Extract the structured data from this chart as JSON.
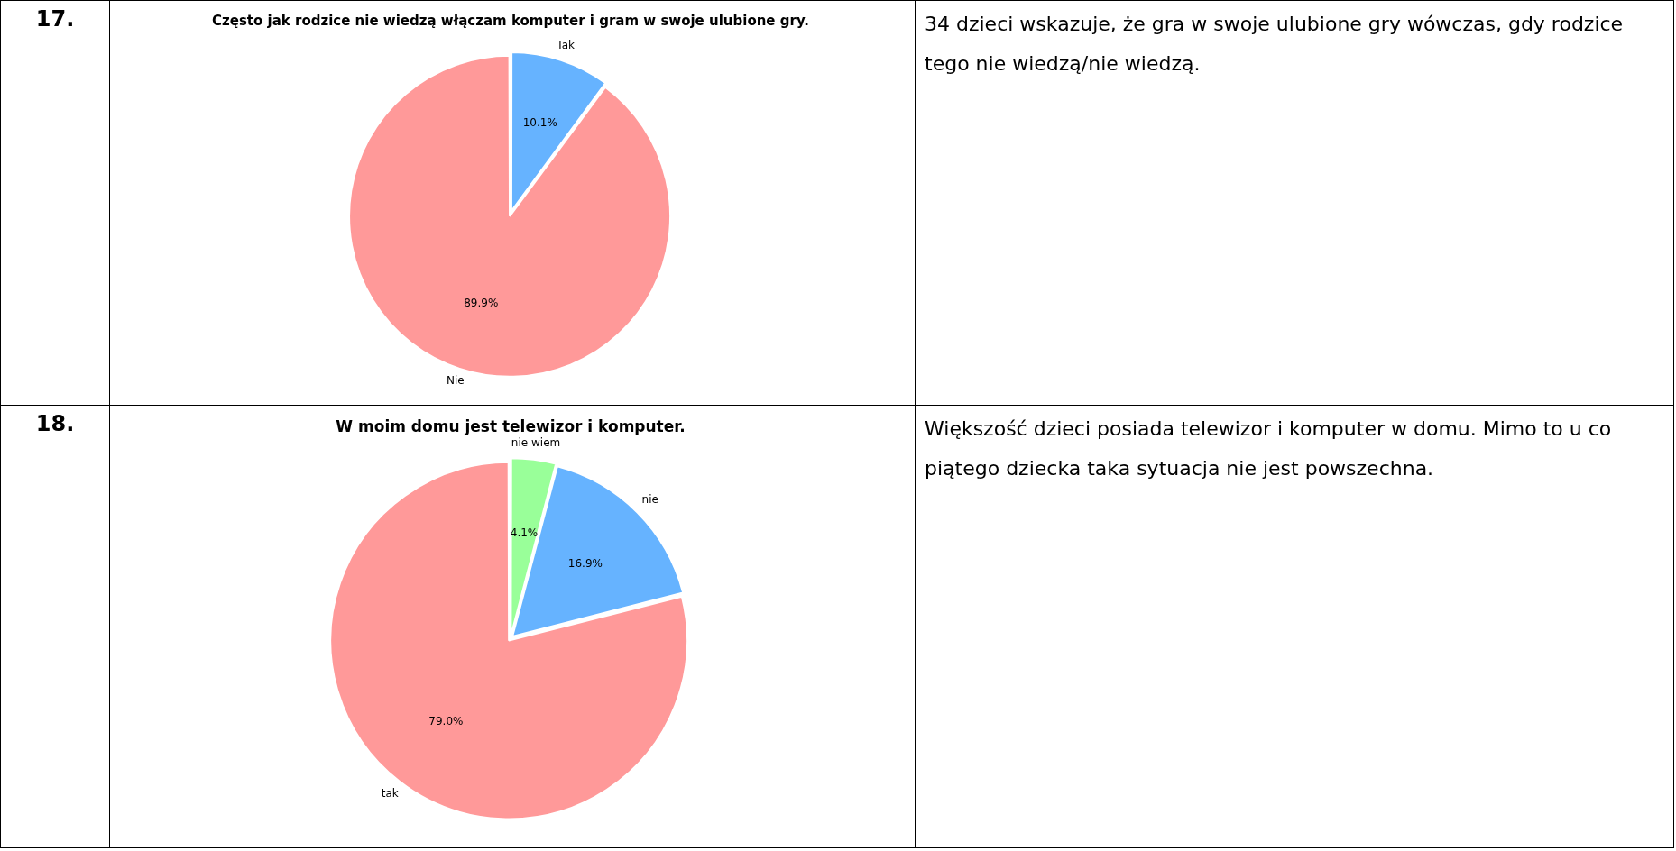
{
  "chart_data": [
    {
      "type": "pie",
      "title": "Często jak rodzice nie wiedzą włączam komputer i gram w swoje ulubione gry.",
      "categories": [
        "Tak",
        "Nie"
      ],
      "values": [
        10.1,
        89.9
      ],
      "colors": [
        "#66b3ff",
        "#ff9999"
      ],
      "value_labels": [
        "10.1%",
        "89.9%"
      ],
      "annotations": [
        "17.",
        "34 dzieci wskazuje, że gra w swoje ulubione gry wówczas, gdy rodzice tego nie wiedzą/nie wiedzą."
      ]
    },
    {
      "type": "pie",
      "title": "W moim domu jest telewizor i komputer.",
      "categories": [
        "nie wiem",
        "nie",
        "tak"
      ],
      "values": [
        4.1,
        16.9,
        79.0
      ],
      "colors": [
        "#99ff99",
        "#66b3ff",
        "#ff9999"
      ],
      "value_labels": [
        "4.1%",
        "16.9%",
        "79.0%"
      ],
      "annotations": [
        "18.",
        "Większość dzieci posiada telewizor i komputer w domu. Mimo to u co piątego dziecka taka sytuacja nie jest powszechna."
      ]
    }
  ]
}
